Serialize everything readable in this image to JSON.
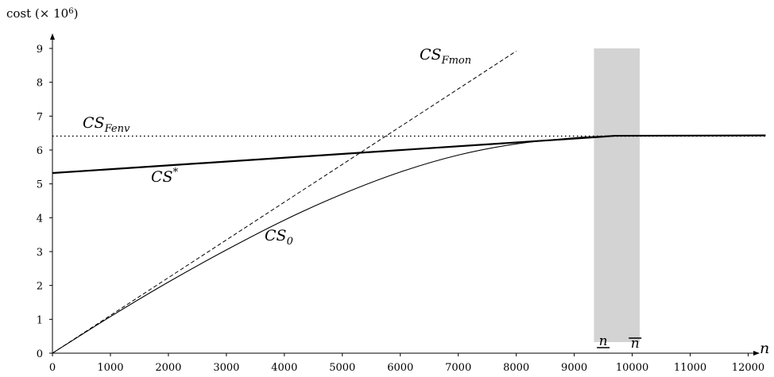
{
  "chart_data": {
    "type": "line",
    "title": "",
    "ylabel": {
      "text": "cost (× 10",
      "exponent": "6",
      "suffix": ")"
    },
    "xlabel": "n",
    "xlim": [
      0,
      12300
    ],
    "ylim": [
      0,
      9.6
    ],
    "x_ticks": [
      0,
      1000,
      2000,
      3000,
      4000,
      5000,
      6000,
      7000,
      8000,
      9000,
      10000,
      11000,
      12000
    ],
    "y_ticks": [
      0,
      1,
      2,
      3,
      4,
      5,
      6,
      7,
      8,
      9
    ],
    "grid": false,
    "shaded_band": {
      "x_from": 9340,
      "x_to": 10130,
      "color": "#d3d3d3"
    },
    "series": [
      {
        "name": "CS_Fenv",
        "label_main": "CS",
        "label_sub": "Fenv",
        "style": "dotted",
        "x": [
          0,
          12300
        ],
        "y": [
          6.41,
          6.41
        ]
      },
      {
        "name": "CS_Fmon",
        "label_main": "CS",
        "label_sub": "Fmon",
        "style": "dashed",
        "x": [
          0,
          8000
        ],
        "y": [
          0,
          8.92
        ]
      },
      {
        "name": "CS*",
        "label_main": "CS",
        "label_sup": "*",
        "style": "thick",
        "x": [
          0,
          9300,
          9700,
          12300
        ],
        "y": [
          5.32,
          6.37,
          6.42,
          6.43
        ]
      },
      {
        "name": "CS_0",
        "label_main": "CS",
        "label_sub": "0",
        "style": "thin",
        "x": [
          0,
          1000,
          2000,
          3000,
          4000,
          5000,
          6000,
          7000,
          8000,
          9000,
          9700,
          10500,
          12300
        ],
        "y": [
          0,
          1.08,
          2.1,
          3.05,
          3.93,
          4.7,
          5.35,
          5.85,
          6.18,
          6.36,
          6.42,
          6.43,
          6.43
        ]
      }
    ],
    "markers": [
      {
        "name": "n-lower",
        "text": "n",
        "decoration": "underline",
        "x": 9500
      },
      {
        "name": "n-upper",
        "text": "n",
        "decoration": "overline",
        "x": 10050
      }
    ]
  }
}
